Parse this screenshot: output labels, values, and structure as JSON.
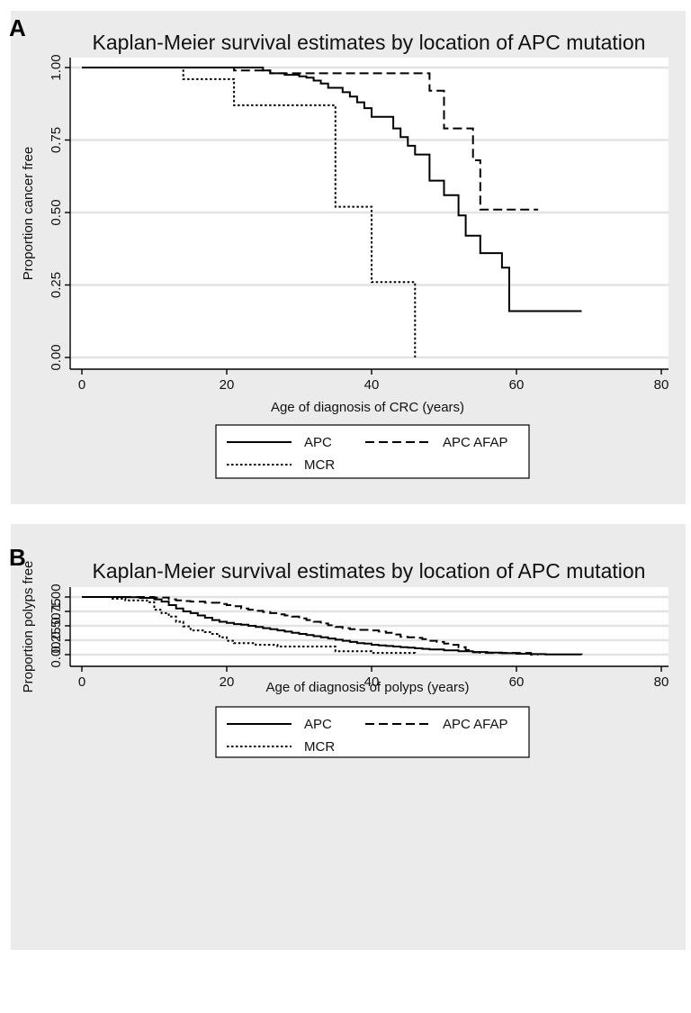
{
  "chart_data": [
    {
      "panel": "A",
      "type": "line",
      "title": "Kaplan-Meier survival estimates by location of APC mutation",
      "xlabel": "Age of diagnosis of CRC (years)",
      "ylabel": "Proportion cancer free",
      "xlim": [
        0,
        80
      ],
      "ylim": [
        0,
        1
      ],
      "xticks": [
        "0",
        "20",
        "40",
        "60",
        "80"
      ],
      "yticks": [
        "0.00",
        "0.25",
        "0.50",
        "0.75",
        "1.00"
      ],
      "grid": true,
      "legend_position": "bottom",
      "series": [
        {
          "name": "APC",
          "style": "solid",
          "x": [
            0,
            25,
            26,
            28,
            30,
            31,
            32,
            33,
            34,
            36,
            37,
            38,
            39,
            40,
            43,
            44,
            45,
            46,
            48,
            50,
            52,
            53,
            55,
            58,
            59,
            60,
            69
          ],
          "y": [
            1.0,
            0.99,
            0.98,
            0.975,
            0.97,
            0.965,
            0.955,
            0.945,
            0.93,
            0.915,
            0.9,
            0.88,
            0.86,
            0.83,
            0.79,
            0.76,
            0.73,
            0.7,
            0.61,
            0.56,
            0.49,
            0.42,
            0.36,
            0.31,
            0.16,
            0.16,
            0.16
          ]
        },
        {
          "name": "APC AFAP",
          "style": "dashed",
          "x": [
            0,
            21,
            26,
            48,
            50,
            54,
            55,
            63
          ],
          "y": [
            1.0,
            0.99,
            0.98,
            0.92,
            0.79,
            0.68,
            0.51,
            0.51
          ]
        },
        {
          "name": "MCR",
          "style": "dotted",
          "x": [
            0,
            14,
            21,
            35,
            40,
            46
          ],
          "y": [
            1.0,
            0.96,
            0.87,
            0.52,
            0.26,
            0.0
          ]
        }
      ]
    },
    {
      "panel": "B",
      "type": "line",
      "title": "Kaplan-Meier survival estimates by location of APC mutation",
      "xlabel": "Age of diagnosis of polyps (years)",
      "ylabel": "Proportion polyps free",
      "xlim": [
        0,
        80
      ],
      "ylim": [
        0,
        1
      ],
      "xticks": [
        "0",
        "20",
        "40",
        "60",
        "80"
      ],
      "yticks": [
        "0.00",
        "0.25",
        "0.50",
        "0.75",
        "1.00"
      ],
      "grid": true,
      "legend_position": "bottom",
      "series": [
        {
          "name": "APC",
          "style": "solid",
          "x": [
            0,
            6,
            8,
            10,
            11,
            12,
            13,
            14,
            15,
            16,
            17,
            18,
            19,
            20,
            21,
            22,
            23,
            24,
            25,
            26,
            27,
            28,
            29,
            30,
            31,
            32,
            33,
            34,
            35,
            36,
            37,
            38,
            39,
            40,
            41,
            42,
            43,
            44,
            45,
            46,
            47,
            48,
            50,
            52,
            54,
            56,
            58,
            60,
            62,
            64,
            66,
            69
          ],
          "y": [
            1.0,
            0.995,
            0.985,
            0.96,
            0.92,
            0.86,
            0.8,
            0.75,
            0.72,
            0.68,
            0.64,
            0.6,
            0.57,
            0.55,
            0.53,
            0.52,
            0.5,
            0.48,
            0.46,
            0.44,
            0.42,
            0.4,
            0.38,
            0.36,
            0.34,
            0.32,
            0.3,
            0.28,
            0.26,
            0.24,
            0.22,
            0.2,
            0.19,
            0.17,
            0.16,
            0.15,
            0.14,
            0.13,
            0.12,
            0.11,
            0.1,
            0.09,
            0.075,
            0.06,
            0.045,
            0.035,
            0.025,
            0.015,
            0.01,
            0.005,
            0.003,
            0.0
          ]
        },
        {
          "name": "APC AFAP",
          "style": "dashed",
          "x": [
            0,
            10,
            12,
            13,
            14,
            15,
            17,
            19,
            20,
            21,
            22,
            23,
            24,
            25,
            26,
            27,
            28,
            29,
            30,
            31,
            32,
            33,
            34,
            35,
            36,
            37,
            38,
            40,
            41,
            42,
            43,
            44,
            45,
            46,
            47,
            48,
            49,
            50,
            51,
            52,
            53,
            54,
            55,
            58,
            62,
            63
          ],
          "y": [
            1.0,
            0.99,
            0.96,
            0.94,
            0.93,
            0.92,
            0.9,
            0.88,
            0.86,
            0.84,
            0.8,
            0.78,
            0.76,
            0.74,
            0.72,
            0.7,
            0.68,
            0.66,
            0.63,
            0.6,
            0.57,
            0.54,
            0.51,
            0.48,
            0.46,
            0.44,
            0.43,
            0.42,
            0.4,
            0.38,
            0.35,
            0.31,
            0.3,
            0.29,
            0.27,
            0.24,
            0.22,
            0.19,
            0.17,
            0.13,
            0.08,
            0.04,
            0.03,
            0.03,
            0.0,
            0.0
          ]
        },
        {
          "name": "MCR",
          "style": "dotted",
          "x": [
            0,
            4,
            6,
            9,
            10,
            11,
            12,
            13,
            14,
            15,
            17,
            18,
            19,
            20,
            21,
            22,
            24,
            27,
            30,
            35,
            40,
            46
          ],
          "y": [
            1.0,
            0.97,
            0.94,
            0.91,
            0.78,
            0.72,
            0.66,
            0.57,
            0.49,
            0.42,
            0.39,
            0.36,
            0.3,
            0.24,
            0.2,
            0.2,
            0.17,
            0.14,
            0.14,
            0.06,
            0.03,
            0.0
          ]
        }
      ]
    }
  ]
}
